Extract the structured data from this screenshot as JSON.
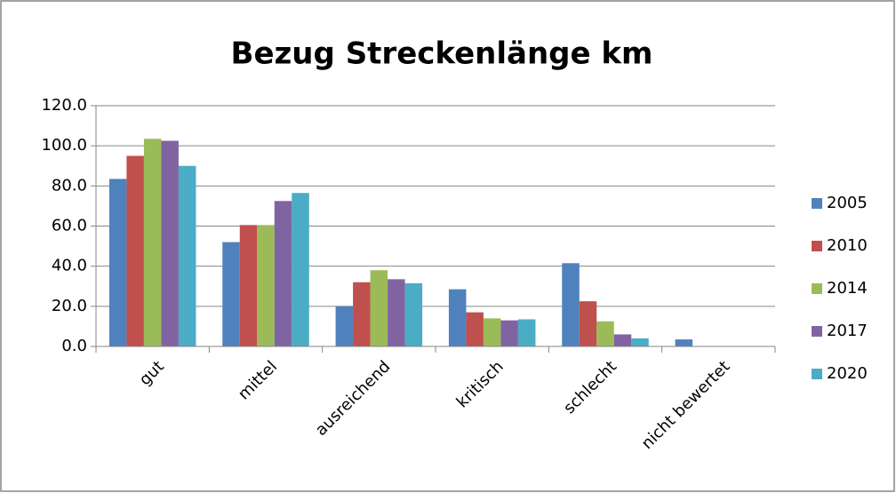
{
  "chart_data": {
    "type": "bar",
    "title": "Bezug Streckenlänge km",
    "categories": [
      "gut",
      "mittel",
      "ausreichend",
      "kritisch",
      "schlecht",
      "nicht bewertet"
    ],
    "series": [
      {
        "name": "2005",
        "color": "#4f81bd",
        "values": [
          83.5,
          52,
          20,
          28.5,
          41.5,
          3.5
        ]
      },
      {
        "name": "2010",
        "color": "#c0504d",
        "values": [
          95,
          60.5,
          32,
          17,
          22.5,
          0
        ]
      },
      {
        "name": "2014",
        "color": "#9bbb59",
        "values": [
          103.5,
          60.5,
          38,
          14,
          12.5,
          0
        ]
      },
      {
        "name": "2017",
        "color": "#8064a2",
        "values": [
          102.5,
          72.5,
          33.5,
          13,
          6,
          0
        ]
      },
      {
        "name": "2020",
        "color": "#4bacc6",
        "values": [
          90,
          76.5,
          31.5,
          13.5,
          4,
          0
        ]
      }
    ],
    "ylim": [
      0,
      120
    ],
    "yticks": [
      {
        "value": 0,
        "label": "0.0"
      },
      {
        "value": 20,
        "label": "20.0"
      },
      {
        "value": 40,
        "label": "40.0"
      },
      {
        "value": 60,
        "label": "60.0"
      },
      {
        "value": 80,
        "label": "80.0"
      },
      {
        "value": 100,
        "label": "100.0"
      },
      {
        "value": 120,
        "label": "120.0"
      }
    ],
    "grid": true,
    "legend": "right"
  }
}
